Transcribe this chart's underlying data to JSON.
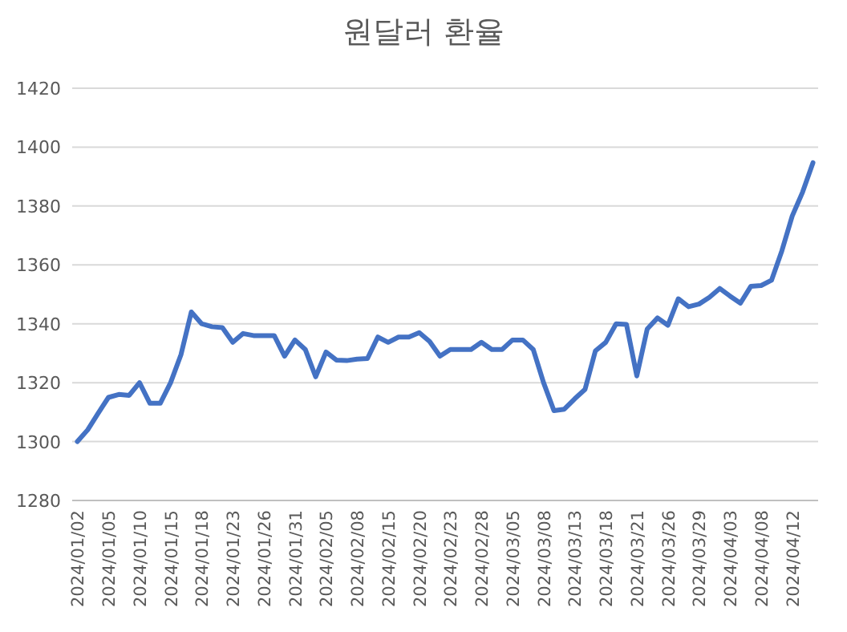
{
  "chart_data": {
    "type": "line",
    "title": "원달러 환율",
    "categories": [
      "2024/01/02",
      null,
      null,
      "2024/01/05",
      null,
      null,
      "2024/01/10",
      null,
      null,
      "2024/01/15",
      null,
      null,
      "2024/01/18",
      null,
      null,
      "2024/01/23",
      null,
      null,
      "2024/01/26",
      null,
      null,
      "2024/01/31",
      null,
      null,
      "2024/02/05",
      null,
      null,
      "2024/02/08",
      null,
      null,
      "2024/02/15",
      null,
      null,
      "2024/02/20",
      null,
      null,
      "2024/02/23",
      null,
      null,
      "2024/02/28",
      null,
      null,
      "2024/03/05",
      null,
      null,
      "2024/03/08",
      null,
      null,
      "2024/03/13",
      null,
      null,
      "2024/03/18",
      null,
      null,
      "2024/03/21",
      null,
      null,
      "2024/03/26",
      null,
      null,
      "2024/03/29",
      null,
      null,
      "2024/04/03",
      null,
      null,
      "2024/04/08",
      null,
      null,
      "2024/04/12",
      null,
      null
    ],
    "series": [
      {
        "color": "#4472c4",
        "values": [
          1300,
          1304,
          1309.6,
          1315,
          1316,
          1315.7,
          1320,
          1313,
          1313,
          1320,
          1329.5,
          1344,
          1340,
          1339,
          1338.7,
          1333.7,
          1336.7,
          1336,
          1336,
          1336,
          1329,
          1334.5,
          1331.3,
          1322,
          1330.4,
          1327.7,
          1327.5,
          1328,
          1328.2,
          1335.5,
          1333.7,
          1335.5,
          1335.5,
          1337,
          1334,
          1329,
          1331.3,
          1331.3,
          1331.3,
          1333.7,
          1331.3,
          1331.3,
          1334.5,
          1334.5,
          1331.3,
          1320,
          1310.5,
          1311,
          1314.5,
          1317.7,
          1330.8,
          1333.7,
          1340,
          1339.8,
          1322.3,
          1338.2,
          1342,
          1339.5,
          1348.5,
          1345.8,
          1346.7,
          1349,
          1352,
          1349.4,
          1347,
          1352.7,
          1353,
          1354.8,
          1364.8,
          1376.6,
          1384.7,
          1394.7
        ]
      }
    ],
    "ylim": [
      1280,
      1420
    ],
    "yticks": [
      1280,
      1300,
      1320,
      1340,
      1360,
      1380,
      1400,
      1420
    ],
    "grid": "y",
    "marker": "none",
    "line_style": "solid"
  }
}
